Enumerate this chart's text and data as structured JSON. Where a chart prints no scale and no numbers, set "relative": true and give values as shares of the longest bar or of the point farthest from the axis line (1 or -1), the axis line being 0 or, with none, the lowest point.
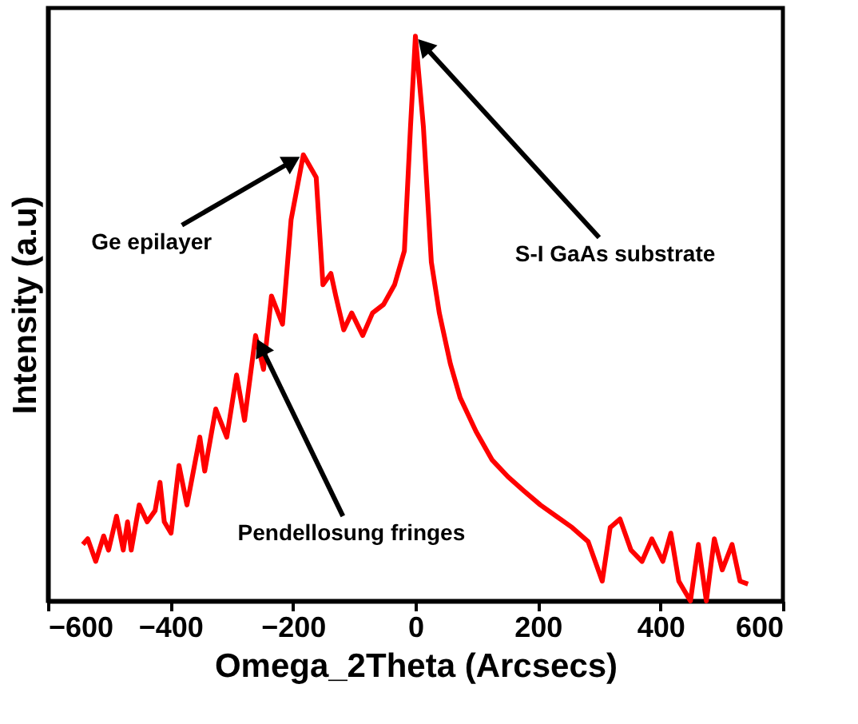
{
  "chart_data": {
    "type": "line",
    "relative": true,
    "xlabel": "Omega_2Theta (Arcsecs)",
    "ylabel": "Intensity (a.u)",
    "xlim": [
      -600,
      600
    ],
    "xticks": [
      -600,
      -400,
      -200,
      0,
      200,
      400,
      600
    ],
    "grid": false,
    "marker": "none",
    "line_style": "solid",
    "x": [
      -543,
      -535,
      -522,
      -509,
      -501,
      -488,
      -477,
      -470,
      -464,
      -451,
      -438,
      -425,
      -417,
      -410,
      -399,
      -386,
      -373,
      -352,
      -344,
      -326,
      -308,
      -292,
      -279,
      -261,
      -248,
      -235,
      -217,
      -203,
      -183,
      -162,
      -151,
      -138,
      -130,
      -117,
      -104,
      -86,
      -70,
      -52,
      -34,
      -18,
      -8,
      0,
      13,
      26,
      39,
      57,
      73,
      99,
      125,
      151,
      177,
      204,
      230,
      256,
      282,
      305,
      318,
      334,
      352,
      370,
      386,
      404,
      417,
      430,
      449,
      462,
      475,
      488,
      501,
      517,
      530,
      543
    ],
    "series": [
      {
        "color": "#ff0000",
        "values": [
          0.1,
          0.11,
          0.07,
          0.115,
          0.09,
          0.15,
          0.09,
          0.14,
          0.09,
          0.17,
          0.14,
          0.16,
          0.21,
          0.14,
          0.12,
          0.24,
          0.17,
          0.29,
          0.23,
          0.34,
          0.29,
          0.4,
          0.32,
          0.47,
          0.41,
          0.54,
          0.49,
          0.675,
          0.79,
          0.75,
          0.56,
          0.58,
          0.54,
          0.48,
          0.51,
          0.47,
          0.51,
          0.525,
          0.56,
          0.62,
          0.84,
          1.0,
          0.84,
          0.6,
          0.51,
          0.42,
          0.36,
          0.3,
          0.25,
          0.22,
          0.195,
          0.17,
          0.15,
          0.13,
          0.105,
          0.035,
          0.13,
          0.145,
          0.09,
          0.07,
          0.11,
          0.07,
          0.12,
          0.035,
          0.0,
          0.1,
          0.0,
          0.11,
          0.055,
          0.1,
          0.035,
          0.03
        ]
      }
    ],
    "annotations": [
      {
        "text": "Ge epilayer",
        "x": -183,
        "y": 0.79
      },
      {
        "text": "S-I GaAs substrate",
        "x": 0,
        "y": 1.0
      },
      {
        "text": "Pendellosung fringes",
        "x": -261,
        "y": 0.47
      }
    ]
  }
}
